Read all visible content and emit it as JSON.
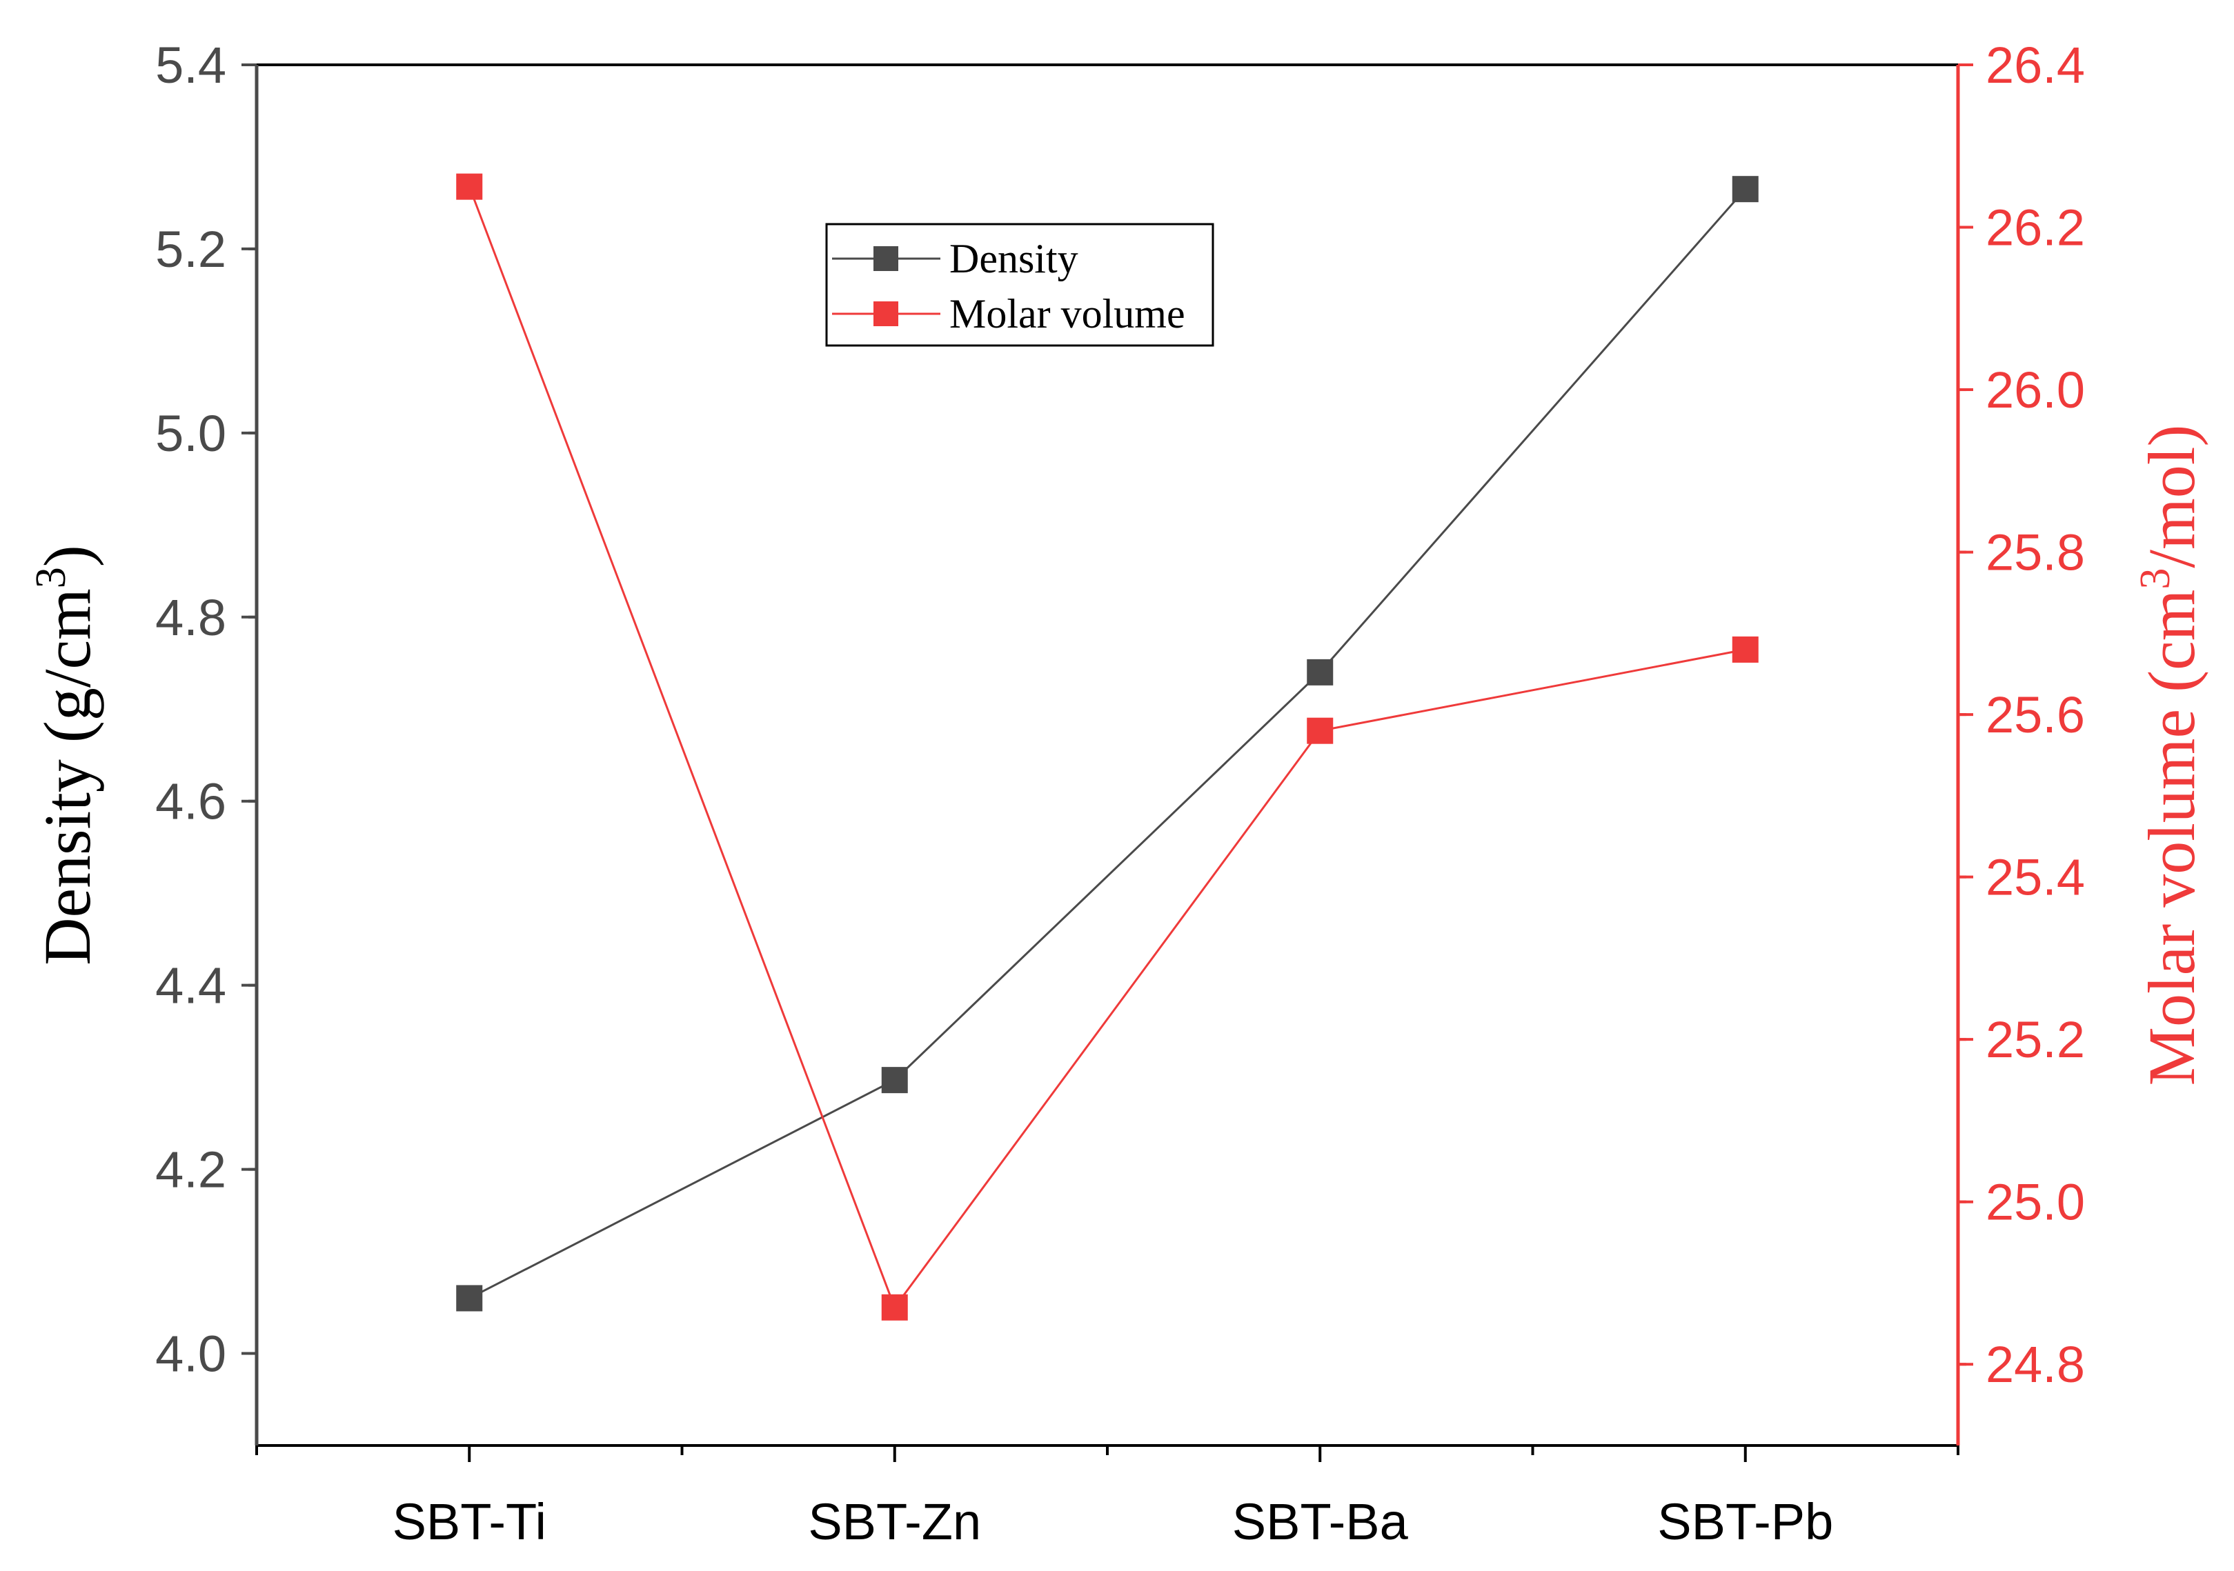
{
  "chart_data": {
    "type": "line",
    "categories": [
      "SBT-Ti",
      "SBT-Zn",
      "SBT-Ba",
      "SBT-Pb"
    ],
    "series": [
      {
        "name": "Density",
        "axis": "left",
        "values": [
          4.06,
          4.297,
          4.74,
          5.265
        ],
        "color": "#4a4a4a",
        "marker": "square"
      },
      {
        "name": "Molar volume",
        "axis": "right",
        "values": [
          26.25,
          24.87,
          25.58,
          25.68
        ],
        "color": "#ef3a3a",
        "marker": "square"
      }
    ],
    "left_axis": {
      "label_main": "Density (g/cm",
      "label_sup": "3",
      "label_close": ")",
      "ylim": [
        3.9,
        5.4
      ],
      "ticks": [
        "4.0",
        "4.2",
        "4.4",
        "4.6",
        "4.8",
        "5.0",
        "5.2",
        "5.4"
      ],
      "color": "#000000",
      "tick_color": "#4a4a4a"
    },
    "right_axis": {
      "label_main": "Molar volume (cm",
      "label_sup": "3",
      "label_close": "/mol)",
      "ylim": [
        24.7,
        26.4
      ],
      "ticks": [
        "24.8",
        "25.0",
        "25.2",
        "25.4",
        "25.6",
        "25.8",
        "26.0",
        "26.2",
        "26.4"
      ],
      "color": "#ef3a3a"
    },
    "legend": {
      "placement": "top-center",
      "entries": [
        "Density",
        "Molar volume"
      ]
    },
    "grid": false
  }
}
